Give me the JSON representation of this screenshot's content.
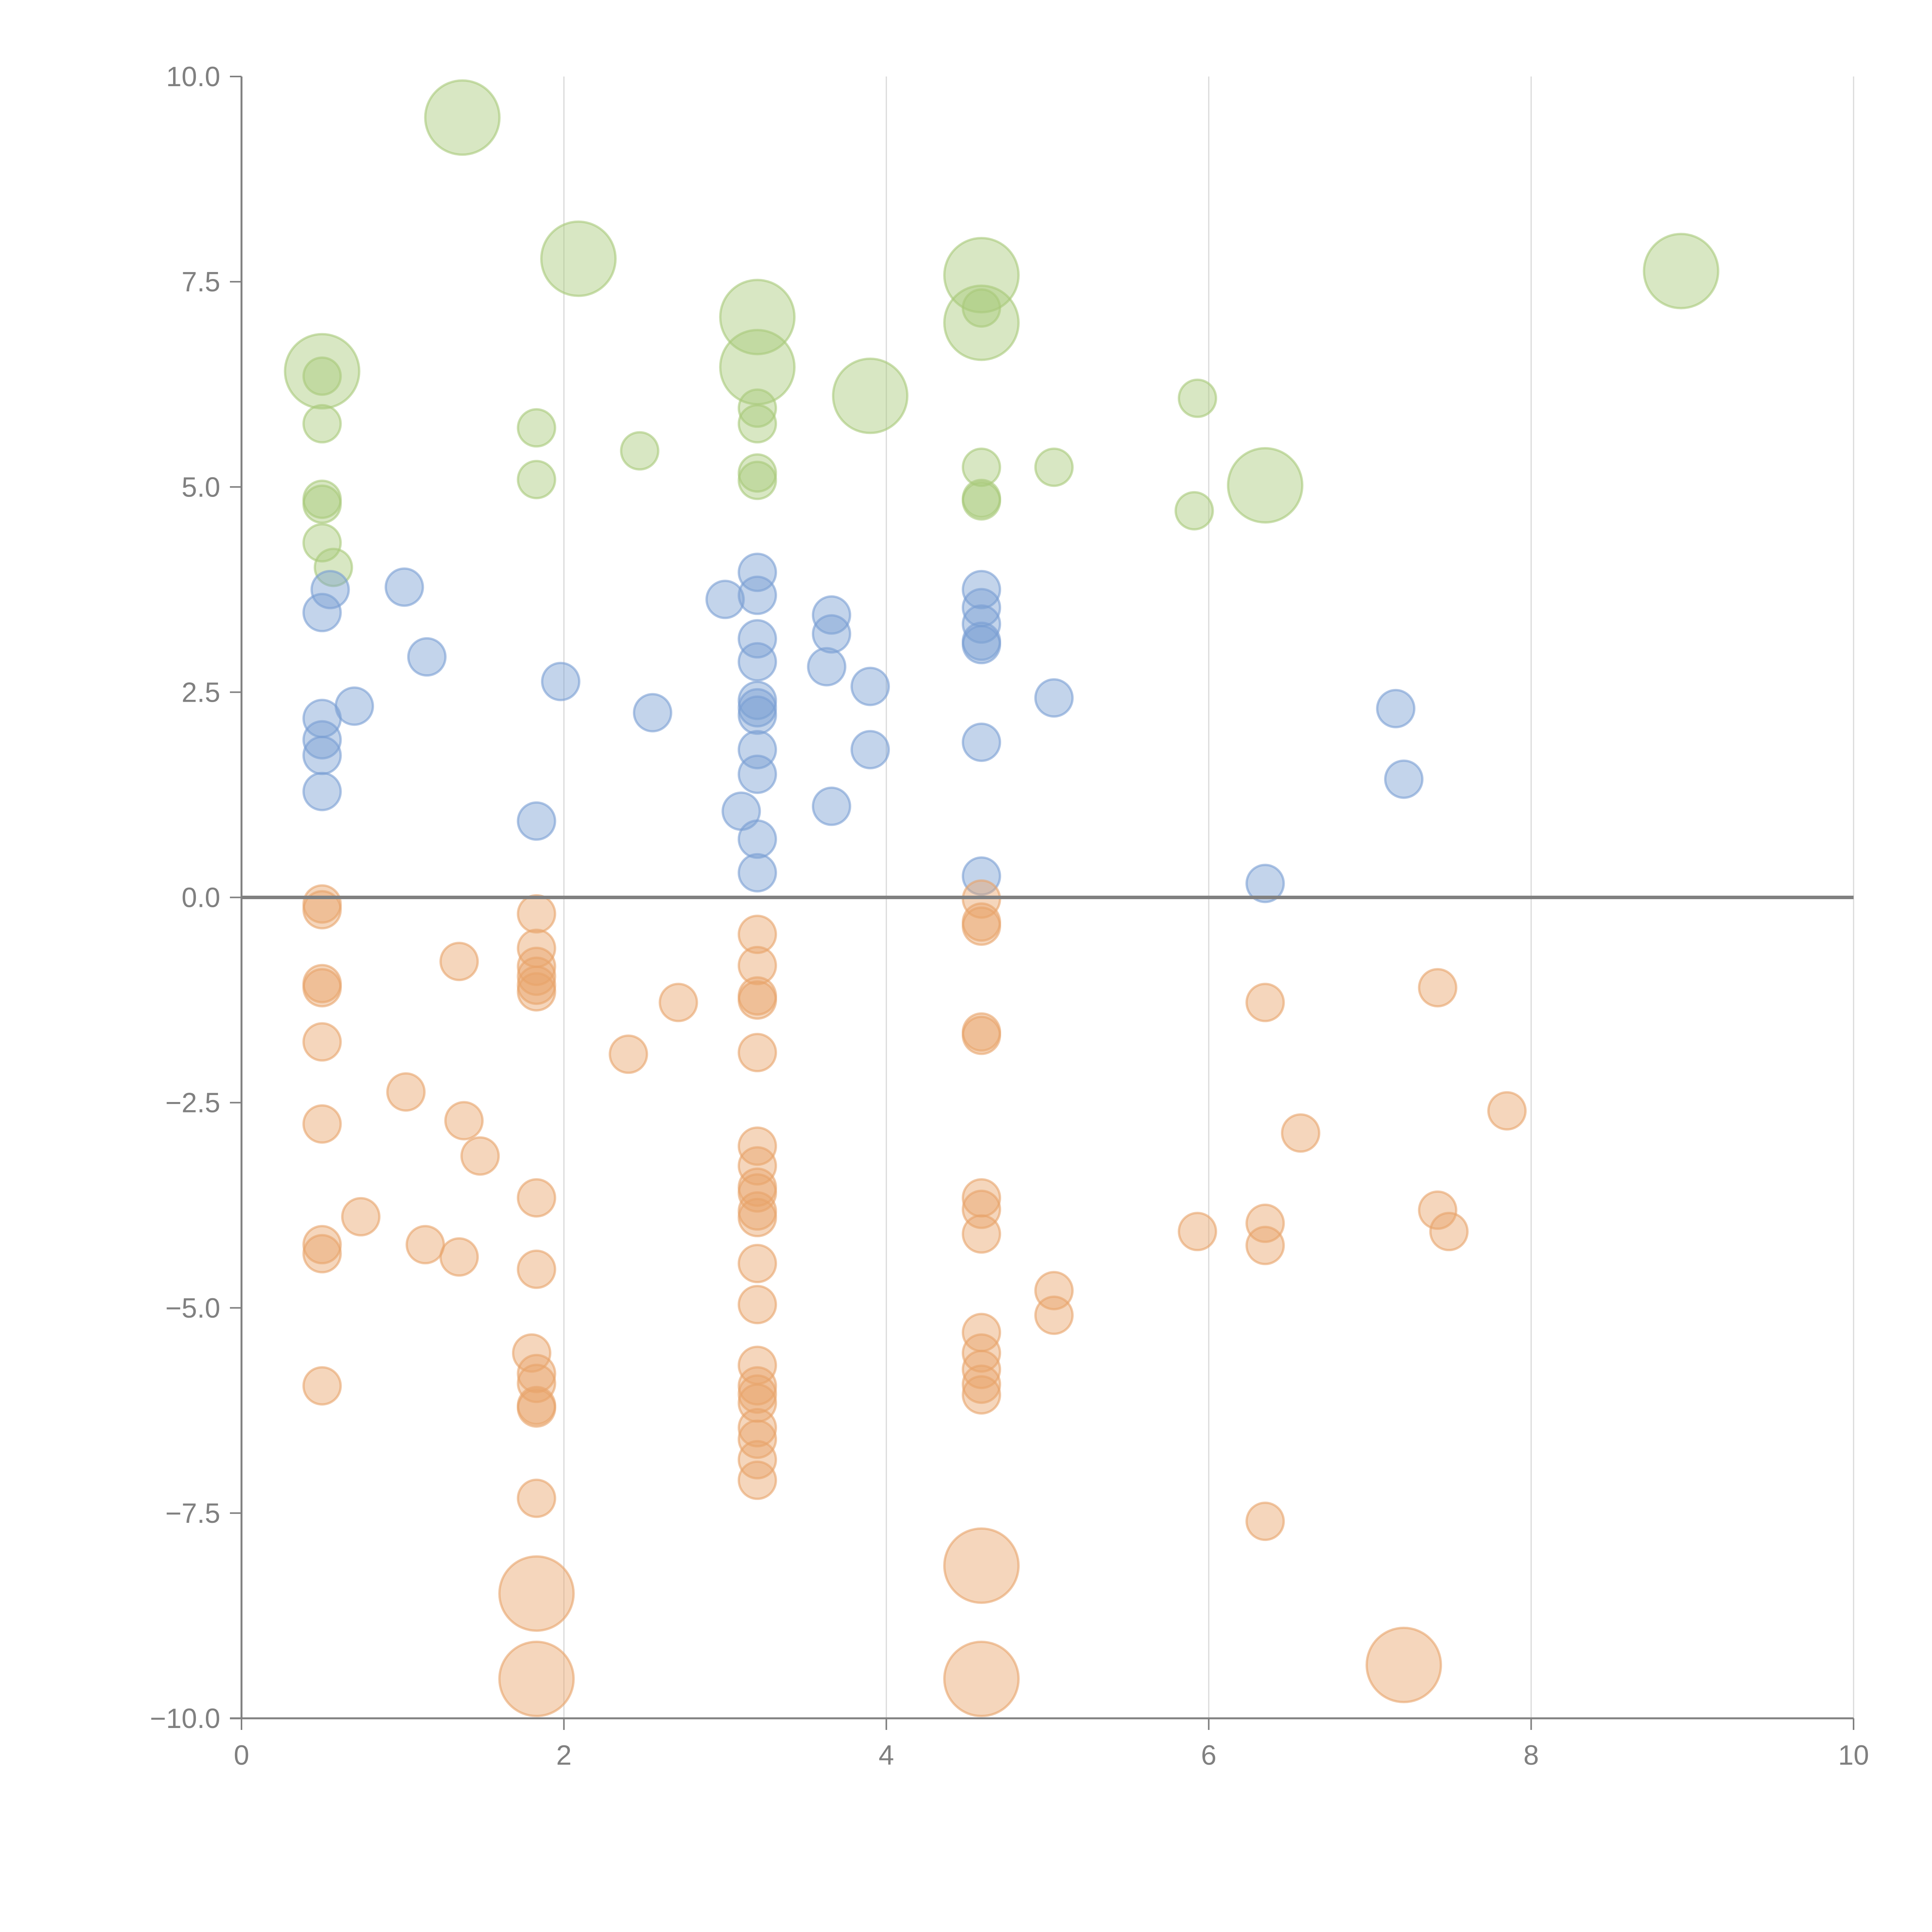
{
  "chart_data": {
    "type": "scatter",
    "title": "",
    "xlabel": "",
    "ylabel": "",
    "xlim": [
      0,
      10
    ],
    "ylim": [
      -10,
      10
    ],
    "xticks": [
      "0",
      "2",
      "4",
      "6",
      "8",
      "10"
    ],
    "yticks": [
      "10.0",
      "7.5",
      "5.0",
      "2.5",
      "0.0",
      "−2.5",
      "−5.0",
      "−7.5",
      "−10.0"
    ],
    "xtick_values": [
      0,
      2,
      4,
      6,
      8,
      10
    ],
    "ytick_values": [
      10,
      7.5,
      5,
      2.5,
      0,
      -2.5,
      -5,
      -7.5,
      -10
    ],
    "grid": "vertical",
    "reference_line_y": 0,
    "legend": "none",
    "size_note": "size is relative bubble area (1 = small, 4 = large)",
    "series": [
      {
        "name": "green",
        "color": "#a9c97a",
        "points": [
          {
            "x": 1.37,
            "y": 9.5,
            "s": 4
          },
          {
            "x": 2.09,
            "y": 7.78,
            "s": 4
          },
          {
            "x": 3.2,
            "y": 7.07,
            "s": 4
          },
          {
            "x": 3.2,
            "y": 6.46,
            "s": 4
          },
          {
            "x": 3.9,
            "y": 6.11,
            "s": 4
          },
          {
            "x": 4.59,
            "y": 7.58,
            "s": 4
          },
          {
            "x": 4.59,
            "y": 7.0,
            "s": 4
          },
          {
            "x": 8.93,
            "y": 7.63,
            "s": 4
          },
          {
            "x": 0.5,
            "y": 6.41,
            "s": 4
          },
          {
            "x": 6.35,
            "y": 5.02,
            "s": 4
          },
          {
            "x": 0.5,
            "y": 6.35,
            "s": 1
          },
          {
            "x": 0.5,
            "y": 5.77,
            "s": 1
          },
          {
            "x": 0.5,
            "y": 4.85,
            "s": 1
          },
          {
            "x": 0.5,
            "y": 4.79,
            "s": 1
          },
          {
            "x": 0.5,
            "y": 4.32,
            "s": 1
          },
          {
            "x": 0.57,
            "y": 4.02,
            "s": 1
          },
          {
            "x": 1.83,
            "y": 5.72,
            "s": 1
          },
          {
            "x": 1.83,
            "y": 5.09,
            "s": 1
          },
          {
            "x": 2.47,
            "y": 5.44,
            "s": 1
          },
          {
            "x": 3.2,
            "y": 5.96,
            "s": 1
          },
          {
            "x": 3.2,
            "y": 5.77,
            "s": 1
          },
          {
            "x": 3.2,
            "y": 5.17,
            "s": 1
          },
          {
            "x": 3.2,
            "y": 5.08,
            "s": 1
          },
          {
            "x": 4.59,
            "y": 7.18,
            "s": 1
          },
          {
            "x": 4.59,
            "y": 5.24,
            "s": 1
          },
          {
            "x": 4.59,
            "y": 4.86,
            "s": 1
          },
          {
            "x": 4.59,
            "y": 4.83,
            "s": 1
          },
          {
            "x": 5.04,
            "y": 5.24,
            "s": 1
          },
          {
            "x": 5.93,
            "y": 6.08,
            "s": 1
          },
          {
            "x": 5.91,
            "y": 4.71,
            "s": 1
          }
        ]
      },
      {
        "name": "blue",
        "color": "#7a9fd3",
        "points": [
          {
            "x": 0.5,
            "y": 3.47,
            "s": 1
          },
          {
            "x": 0.55,
            "y": 3.75,
            "s": 1
          },
          {
            "x": 0.5,
            "y": 2.18,
            "s": 1
          },
          {
            "x": 0.7,
            "y": 2.33,
            "s": 1
          },
          {
            "x": 0.5,
            "y": 1.92,
            "s": 1
          },
          {
            "x": 0.5,
            "y": 1.73,
            "s": 1
          },
          {
            "x": 0.5,
            "y": 1.29,
            "s": 1
          },
          {
            "x": 1.01,
            "y": 3.78,
            "s": 1
          },
          {
            "x": 1.15,
            "y": 2.93,
            "s": 1
          },
          {
            "x": 1.83,
            "y": 0.93,
            "s": 1
          },
          {
            "x": 1.98,
            "y": 2.63,
            "s": 1
          },
          {
            "x": 2.55,
            "y": 2.25,
            "s": 1
          },
          {
            "x": 3.0,
            "y": 3.63,
            "s": 1
          },
          {
            "x": 3.2,
            "y": 3.96,
            "s": 1
          },
          {
            "x": 3.2,
            "y": 3.68,
            "s": 1
          },
          {
            "x": 3.2,
            "y": 3.15,
            "s": 1
          },
          {
            "x": 3.2,
            "y": 2.87,
            "s": 1
          },
          {
            "x": 3.2,
            "y": 2.4,
            "s": 1
          },
          {
            "x": 3.2,
            "y": 2.31,
            "s": 1
          },
          {
            "x": 3.2,
            "y": 2.22,
            "s": 1
          },
          {
            "x": 3.2,
            "y": 1.8,
            "s": 1
          },
          {
            "x": 3.2,
            "y": 1.5,
            "s": 1
          },
          {
            "x": 3.1,
            "y": 1.05,
            "s": 1
          },
          {
            "x": 3.2,
            "y": 0.71,
            "s": 1
          },
          {
            "x": 3.2,
            "y": 0.3,
            "s": 1
          },
          {
            "x": 3.63,
            "y": 2.81,
            "s": 1
          },
          {
            "x": 3.66,
            "y": 3.44,
            "s": 1
          },
          {
            "x": 3.66,
            "y": 3.21,
            "s": 1
          },
          {
            "x": 3.66,
            "y": 1.11,
            "s": 1
          },
          {
            "x": 3.9,
            "y": 2.57,
            "s": 1
          },
          {
            "x": 3.9,
            "y": 1.8,
            "s": 1
          },
          {
            "x": 4.59,
            "y": 3.75,
            "s": 1
          },
          {
            "x": 4.59,
            "y": 3.53,
            "s": 1
          },
          {
            "x": 4.59,
            "y": 3.33,
            "s": 1
          },
          {
            "x": 4.59,
            "y": 3.12,
            "s": 1
          },
          {
            "x": 4.59,
            "y": 3.08,
            "s": 1
          },
          {
            "x": 4.59,
            "y": 1.89,
            "s": 1
          },
          {
            "x": 4.59,
            "y": 0.26,
            "s": 1
          },
          {
            "x": 5.04,
            "y": 2.43,
            "s": 1
          },
          {
            "x": 6.35,
            "y": 0.17,
            "s": 1
          },
          {
            "x": 7.16,
            "y": 2.3,
            "s": 1
          },
          {
            "x": 7.21,
            "y": 1.44,
            "s": 1
          }
        ]
      },
      {
        "name": "orange",
        "color": "#e8a46a",
        "points": [
          {
            "x": 1.83,
            "y": -8.48,
            "s": 4
          },
          {
            "x": 1.83,
            "y": -9.52,
            "s": 4
          },
          {
            "x": 4.59,
            "y": -8.14,
            "s": 4
          },
          {
            "x": 4.59,
            "y": -9.52,
            "s": 4
          },
          {
            "x": 7.21,
            "y": -9.35,
            "s": 4
          },
          {
            "x": 0.5,
            "y": -0.08,
            "s": 1
          },
          {
            "x": 0.5,
            "y": -0.15,
            "s": 1
          },
          {
            "x": 0.5,
            "y": -1.05,
            "s": 1
          },
          {
            "x": 0.5,
            "y": -1.1,
            "s": 1
          },
          {
            "x": 0.5,
            "y": -1.76,
            "s": 1
          },
          {
            "x": 0.5,
            "y": -2.76,
            "s": 1
          },
          {
            "x": 0.5,
            "y": -4.23,
            "s": 1
          },
          {
            "x": 0.5,
            "y": -4.34,
            "s": 1
          },
          {
            "x": 0.5,
            "y": -5.95,
            "s": 1
          },
          {
            "x": 1.02,
            "y": -2.37,
            "s": 1
          },
          {
            "x": 0.74,
            "y": -3.89,
            "s": 1
          },
          {
            "x": 1.14,
            "y": -4.23,
            "s": 1
          },
          {
            "x": 1.35,
            "y": -0.78,
            "s": 1
          },
          {
            "x": 1.38,
            "y": -2.72,
            "s": 1
          },
          {
            "x": 1.48,
            "y": -3.15,
            "s": 1
          },
          {
            "x": 1.35,
            "y": -4.38,
            "s": 1
          },
          {
            "x": 1.83,
            "y": -0.2,
            "s": 1
          },
          {
            "x": 1.83,
            "y": -0.62,
            "s": 1
          },
          {
            "x": 1.83,
            "y": -0.84,
            "s": 1
          },
          {
            "x": 1.83,
            "y": -0.96,
            "s": 1
          },
          {
            "x": 1.83,
            "y": -1.07,
            "s": 1
          },
          {
            "x": 1.83,
            "y": -1.15,
            "s": 1
          },
          {
            "x": 1.83,
            "y": -3.66,
            "s": 1
          },
          {
            "x": 1.83,
            "y": -4.53,
            "s": 1
          },
          {
            "x": 1.8,
            "y": -5.55,
            "s": 1
          },
          {
            "x": 1.83,
            "y": -5.8,
            "s": 1
          },
          {
            "x": 1.83,
            "y": -5.92,
            "s": 1
          },
          {
            "x": 1.83,
            "y": -6.19,
            "s": 1
          },
          {
            "x": 1.83,
            "y": -6.22,
            "s": 1
          },
          {
            "x": 1.83,
            "y": -7.32,
            "s": 1
          },
          {
            "x": 2.4,
            "y": -1.91,
            "s": 1
          },
          {
            "x": 2.71,
            "y": -1.28,
            "s": 1
          },
          {
            "x": 3.2,
            "y": -0.45,
            "s": 1
          },
          {
            "x": 3.2,
            "y": -0.83,
            "s": 1
          },
          {
            "x": 3.2,
            "y": -1.2,
            "s": 1
          },
          {
            "x": 3.2,
            "y": -1.25,
            "s": 1
          },
          {
            "x": 3.2,
            "y": -1.89,
            "s": 1
          },
          {
            "x": 3.2,
            "y": -3.03,
            "s": 1
          },
          {
            "x": 3.2,
            "y": -3.27,
            "s": 1
          },
          {
            "x": 3.2,
            "y": -3.53,
            "s": 1
          },
          {
            "x": 3.2,
            "y": -3.6,
            "s": 1
          },
          {
            "x": 3.2,
            "y": -3.82,
            "s": 1
          },
          {
            "x": 3.2,
            "y": -3.9,
            "s": 1
          },
          {
            "x": 3.2,
            "y": -4.46,
            "s": 1
          },
          {
            "x": 3.2,
            "y": -4.96,
            "s": 1
          },
          {
            "x": 3.2,
            "y": -5.7,
            "s": 1
          },
          {
            "x": 3.2,
            "y": -5.95,
            "s": 1
          },
          {
            "x": 3.2,
            "y": -6.05,
            "s": 1
          },
          {
            "x": 3.2,
            "y": -6.16,
            "s": 1
          },
          {
            "x": 3.2,
            "y": -6.46,
            "s": 1
          },
          {
            "x": 3.2,
            "y": -6.6,
            "s": 1
          },
          {
            "x": 3.2,
            "y": -6.85,
            "s": 1
          },
          {
            "x": 3.2,
            "y": -7.1,
            "s": 1
          },
          {
            "x": 4.59,
            "y": -0.02,
            "s": 1
          },
          {
            "x": 4.59,
            "y": -0.3,
            "s": 1
          },
          {
            "x": 4.59,
            "y": -0.35,
            "s": 1
          },
          {
            "x": 4.59,
            "y": -1.64,
            "s": 1
          },
          {
            "x": 4.59,
            "y": -1.68,
            "s": 1
          },
          {
            "x": 4.59,
            "y": -3.66,
            "s": 1
          },
          {
            "x": 4.59,
            "y": -3.8,
            "s": 1
          },
          {
            "x": 4.59,
            "y": -4.1,
            "s": 1
          },
          {
            "x": 4.59,
            "y": -5.3,
            "s": 1
          },
          {
            "x": 4.59,
            "y": -5.55,
            "s": 1
          },
          {
            "x": 4.59,
            "y": -5.75,
            "s": 1
          },
          {
            "x": 4.59,
            "y": -5.93,
            "s": 1
          },
          {
            "x": 4.59,
            "y": -6.06,
            "s": 1
          },
          {
            "x": 5.04,
            "y": -4.79,
            "s": 1
          },
          {
            "x": 5.04,
            "y": -5.09,
            "s": 1
          },
          {
            "x": 5.93,
            "y": -4.07,
            "s": 1
          },
          {
            "x": 6.35,
            "y": -1.28,
            "s": 1
          },
          {
            "x": 6.35,
            "y": -3.97,
            "s": 1
          },
          {
            "x": 6.35,
            "y": -4.24,
            "s": 1
          },
          {
            "x": 6.35,
            "y": -7.6,
            "s": 1
          },
          {
            "x": 6.57,
            "y": -2.87,
            "s": 1
          },
          {
            "x": 7.42,
            "y": -1.1,
            "s": 1
          },
          {
            "x": 7.42,
            "y": -3.81,
            "s": 1
          },
          {
            "x": 7.49,
            "y": -4.07,
            "s": 1
          },
          {
            "x": 7.85,
            "y": -2.6,
            "s": 1
          }
        ]
      }
    ]
  }
}
